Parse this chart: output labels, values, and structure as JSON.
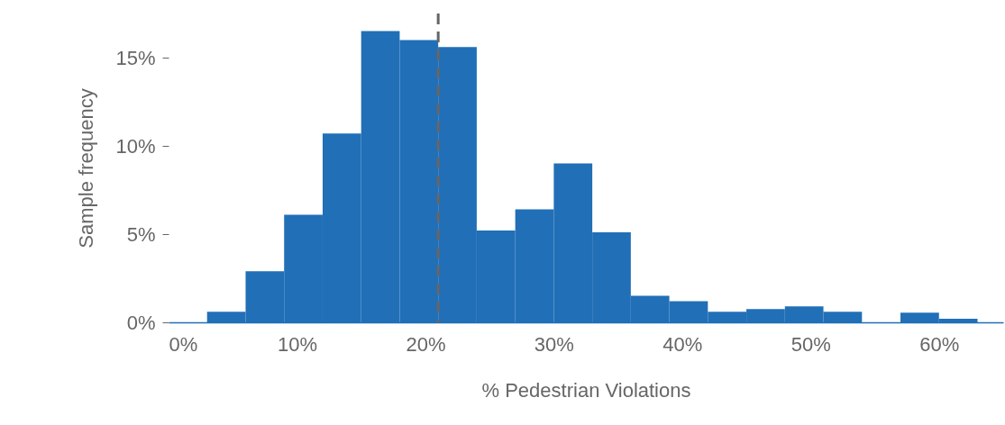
{
  "chart_data": {
    "type": "histogram",
    "xlabel": "% Pedestrian Violations",
    "ylabel": "Sample frequency",
    "color": "#216fb7",
    "bins": [
      3,
      6,
      9,
      12,
      15,
      18,
      21,
      24,
      27,
      30,
      33,
      36,
      39,
      42,
      45,
      48,
      51,
      54,
      57,
      60,
      63
    ],
    "values": [
      0.6,
      2.9,
      6.1,
      10.7,
      16.5,
      16.0,
      15.6,
      5.2,
      6.4,
      9.0,
      5.1,
      1.5,
      1.2,
      0.6,
      0.75,
      0.9,
      0.6,
      0,
      0.55,
      0.2
    ],
    "xlim": [
      0,
      65
    ],
    "xticks": [
      {
        "value": 0,
        "label": "0%"
      },
      {
        "value": 10,
        "label": "10%"
      },
      {
        "value": 20,
        "label": "20%"
      },
      {
        "value": 30,
        "label": "30%"
      },
      {
        "value": 40,
        "label": "40%"
      },
      {
        "value": 50,
        "label": "50%"
      },
      {
        "value": 60,
        "label": "60%"
      }
    ],
    "ylim": [
      0,
      17.5
    ],
    "yticks": [
      {
        "value": 0,
        "label": "0%"
      },
      {
        "value": 5,
        "label": "5%"
      },
      {
        "value": 10,
        "label": "10%"
      },
      {
        "value": 15,
        "label": "15%"
      }
    ],
    "ref_lines": [
      {
        "axis": "x",
        "value": 21,
        "color": "#666666",
        "line_style": "dashed"
      }
    ],
    "grid": false
  }
}
